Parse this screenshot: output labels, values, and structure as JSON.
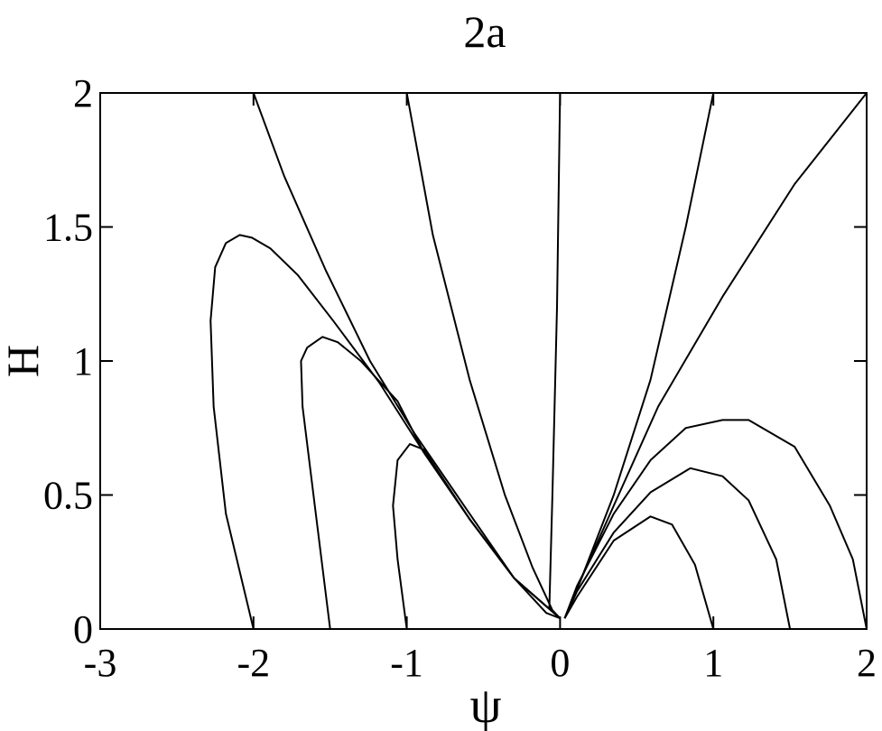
{
  "chart_data": {
    "type": "line",
    "title": "2a",
    "x_label": "ψ",
    "y_label": "H",
    "xlim": [
      -3,
      2
    ],
    "ylim": [
      0,
      2
    ],
    "xticks": [
      -3,
      -2,
      -1,
      0,
      1,
      2
    ],
    "yticks": [
      0,
      0.5,
      1,
      1.5,
      2
    ],
    "series": [
      {
        "color": "#000000",
        "x": [
          -2.0,
          -2.18,
          -2.26,
          -2.28,
          -2.25,
          -2.18,
          -2.09,
          -2.01,
          -1.89,
          -1.71,
          -1.48,
          -1.18,
          -0.89,
          -0.59,
          -0.3,
          -0.09,
          0
        ],
        "values": [
          0,
          0.43,
          0.83,
          1.15,
          1.35,
          1.44,
          1.47,
          1.46,
          1.42,
          1.32,
          1.15,
          0.92,
          0.66,
          0.41,
          0.19,
          0.06,
          0.04
        ]
      },
      {
        "color": "#000000",
        "x": [
          -1.5,
          -1.6,
          -1.68,
          -1.69,
          -1.65,
          -1.55,
          -1.45,
          -1.3,
          -1.06,
          -0.89,
          -0.59,
          -0.3,
          0
        ],
        "values": [
          0,
          0.46,
          0.83,
          1.0,
          1.05,
          1.09,
          1.07,
          1.0,
          0.85,
          0.66,
          0.41,
          0.19,
          0.04
        ]
      },
      {
        "color": "#000000",
        "x": [
          -1.0,
          -1.06,
          -1.09,
          -1.06,
          -0.98,
          -0.89,
          -0.59,
          -0.3,
          0
        ],
        "values": [
          0,
          0.26,
          0.46,
          0.63,
          0.69,
          0.67,
          0.41,
          0.19,
          0.04
        ]
      },
      {
        "color": "#000000",
        "x": [
          -2.0,
          -1.8,
          -1.53,
          -1.24,
          -0.95,
          -0.59,
          -0.3,
          0
        ],
        "values": [
          2,
          1.69,
          1.34,
          1.0,
          0.73,
          0.43,
          0.19,
          0.04
        ]
      },
      {
        "color": "#000000",
        "x": [
          -1.0,
          -0.83,
          -0.59,
          -0.36,
          -0.18,
          -0.05,
          0
        ],
        "values": [
          2,
          1.47,
          0.93,
          0.5,
          0.23,
          0.07,
          0.04
        ]
      },
      {
        "color": "#000000",
        "x": [
          0,
          -0.02,
          -0.05,
          -0.07,
          0
        ],
        "values": [
          2,
          1.2,
          0.5,
          0.08,
          0.04
        ]
      },
      {
        "color": "#000000",
        "x": [
          1.0,
          0.82,
          0.59,
          0.35,
          0.14,
          0.03
        ],
        "values": [
          2,
          1.5,
          0.93,
          0.5,
          0.19,
          0.04
        ]
      },
      {
        "color": "#000000",
        "x": [
          2.0,
          1.53,
          1.06,
          0.64,
          0.35,
          0.14,
          0.03
        ],
        "values": [
          2,
          1.66,
          1.24,
          0.83,
          0.46,
          0.19,
          0.04
        ]
      },
      {
        "color": "#000000",
        "x": [
          0.03,
          0.11,
          0.35,
          0.59,
          0.82,
          1.06,
          1.23,
          1.53,
          1.76,
          1.91,
          2.0
        ],
        "values": [
          0.04,
          0.16,
          0.43,
          0.63,
          0.75,
          0.78,
          0.78,
          0.68,
          0.46,
          0.26,
          0
        ]
      },
      {
        "color": "#000000",
        "x": [
          0.03,
          0.11,
          0.35,
          0.59,
          0.85,
          1.06,
          1.23,
          1.41,
          1.5
        ],
        "values": [
          0.04,
          0.14,
          0.36,
          0.51,
          0.6,
          0.57,
          0.48,
          0.26,
          0
        ]
      },
      {
        "color": "#000000",
        "x": [
          0.03,
          0.11,
          0.35,
          0.59,
          0.73,
          0.88,
          1.0
        ],
        "values": [
          0.04,
          0.12,
          0.33,
          0.42,
          0.39,
          0.24,
          0
        ]
      }
    ]
  }
}
